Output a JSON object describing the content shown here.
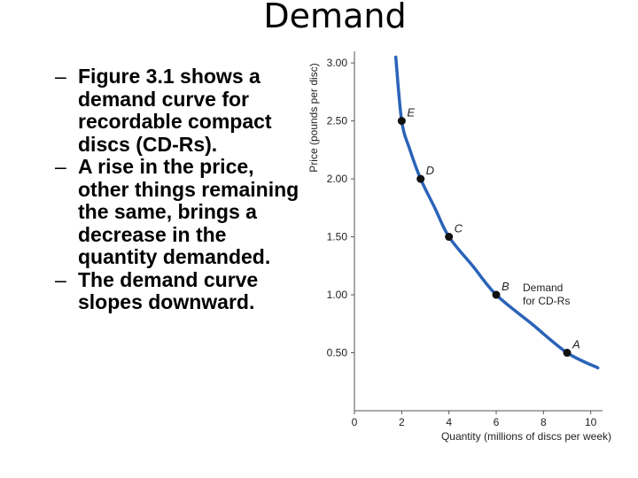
{
  "slide": {
    "title": "Demand",
    "bullets": [
      "Figure 3.1 shows a demand curve for recordable compact discs (CD-Rs).",
      "A rise in the price, other things remaining the same, brings a decrease in the quantity demanded.",
      "The demand curve slopes downward."
    ]
  },
  "chart_data": {
    "type": "line",
    "xlabel": "Quantity (millions of discs per week)",
    "ylabel": "Price (pounds per disc)",
    "xlim": [
      0,
      10.5
    ],
    "ylim": [
      0,
      3.1
    ],
    "x_ticks": [
      0,
      2,
      4,
      6,
      8,
      10
    ],
    "x_tick_labels": [
      "0",
      "2",
      "4",
      "6",
      "8",
      "10"
    ],
    "y_ticks": [
      0.5,
      1.0,
      1.5,
      2.0,
      2.5,
      3.0
    ],
    "y_tick_labels": [
      "0.50",
      "1.00",
      "1.50",
      "2.00",
      "2.50",
      "3.00"
    ],
    "series": [
      {
        "name": "Demand for CD-Rs",
        "color": "#2a63b8",
        "x": [
          1.75,
          2.0,
          2.35,
          2.8,
          3.4,
          4.0,
          5.0,
          6.0,
          7.5,
          9.0,
          10.3
        ],
        "y": [
          3.05,
          2.5,
          2.25,
          2.0,
          1.75,
          1.5,
          1.25,
          1.0,
          0.75,
          0.5,
          0.37
        ]
      }
    ],
    "points": [
      {
        "label": "E",
        "x": 2.0,
        "y": 2.5
      },
      {
        "label": "D",
        "x": 2.8,
        "y": 2.0
      },
      {
        "label": "C",
        "x": 4.0,
        "y": 1.5
      },
      {
        "label": "B",
        "x": 6.0,
        "y": 1.0
      },
      {
        "label": "A",
        "x": 9.0,
        "y": 0.5
      }
    ],
    "annotation": [
      "Demand",
      "for CD-Rs"
    ],
    "grid": false
  }
}
